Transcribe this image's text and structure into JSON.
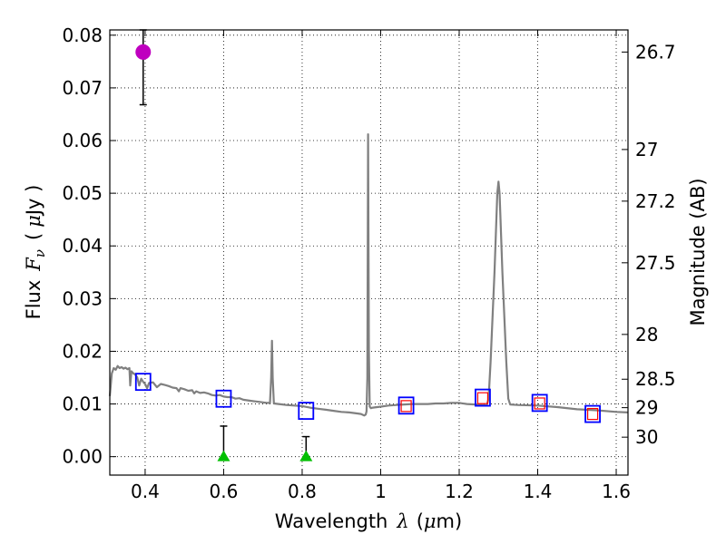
{
  "chart_data": {
    "type": "line",
    "title": "",
    "xlabel": "Wavelength",
    "xlabel_symbol": "λ",
    "xlabel_unit_open": "(",
    "xlabel_unit_mu": "μ",
    "xlabel_unit_rest": "m)",
    "ylabel": "Flux",
    "ylabel_symbol": "F",
    "ylabel_subscript": "ν",
    "ylabel_unit_open": "(",
    "ylabel_unit_mu": "μ",
    "ylabel_unit_rest": "Jy )",
    "y2label": "Magnitude (AB)",
    "xlim": [
      0.31,
      1.63
    ],
    "ylim": [
      -0.0035,
      0.081
    ],
    "xticks": [
      0.4,
      0.6,
      0.8,
      1.0,
      1.2,
      1.4,
      1.6
    ],
    "xtick_labels": [
      "0.4",
      "0.6",
      "0.8",
      "1",
      "1.2",
      "1.4",
      "1.6"
    ],
    "yticks": [
      0.0,
      0.01,
      0.02,
      0.03,
      0.04,
      0.05,
      0.06,
      0.07,
      0.08
    ],
    "ytick_labels": [
      "0.00",
      "0.01",
      "0.02",
      "0.03",
      "0.04",
      "0.05",
      "0.06",
      "0.07",
      "0.08"
    ],
    "y2_ticks": [
      {
        "label": "26.7",
        "flux": 0.0768
      },
      {
        "label": "27",
        "flux": 0.0583
      },
      {
        "label": "27.2",
        "flux": 0.0485
      },
      {
        "label": "27.5",
        "flux": 0.0368
      },
      {
        "label": "28",
        "flux": 0.0232
      },
      {
        "label": "28.5",
        "flux": 0.0147
      },
      {
        "label": "29",
        "flux": 0.0093
      },
      {
        "label": "30",
        "flux": 0.0037
      }
    ],
    "grid": true,
    "colors": {
      "model": "#808080",
      "measured": "#0000ff",
      "model_photometry": "#ff0000",
      "detection": "#bf00bf",
      "upper_limit": "#00bf00",
      "error_bar": "#000000"
    },
    "series": [
      {
        "name": "model spectrum",
        "kind": "line",
        "points": [
          [
            0.31,
            0.0115
          ],
          [
            0.315,
            0.0158
          ],
          [
            0.32,
            0.0168
          ],
          [
            0.325,
            0.0165
          ],
          [
            0.33,
            0.0172
          ],
          [
            0.335,
            0.0168
          ],
          [
            0.34,
            0.017
          ],
          [
            0.345,
            0.0167
          ],
          [
            0.35,
            0.0169
          ],
          [
            0.355,
            0.0166
          ],
          [
            0.36,
            0.0168
          ],
          [
            0.362,
            0.0135
          ],
          [
            0.365,
            0.0162
          ],
          [
            0.37,
            0.0158
          ],
          [
            0.375,
            0.0156
          ],
          [
            0.38,
            0.015
          ],
          [
            0.385,
            0.0135
          ],
          [
            0.39,
            0.0148
          ],
          [
            0.395,
            0.0142
          ],
          [
            0.4,
            0.0138
          ],
          [
            0.405,
            0.013
          ],
          [
            0.41,
            0.014
          ],
          [
            0.42,
            0.0141
          ],
          [
            0.43,
            0.0132
          ],
          [
            0.44,
            0.0138
          ],
          [
            0.45,
            0.0136
          ],
          [
            0.46,
            0.0134
          ],
          [
            0.47,
            0.0131
          ],
          [
            0.48,
            0.013
          ],
          [
            0.486,
            0.0124
          ],
          [
            0.49,
            0.013
          ],
          [
            0.5,
            0.0128
          ],
          [
            0.51,
            0.0125
          ],
          [
            0.52,
            0.0126
          ],
          [
            0.525,
            0.012
          ],
          [
            0.53,
            0.0124
          ],
          [
            0.54,
            0.0121
          ],
          [
            0.55,
            0.0122
          ],
          [
            0.56,
            0.012
          ],
          [
            0.57,
            0.0117
          ],
          [
            0.58,
            0.0116
          ],
          [
            0.59,
            0.0117
          ],
          [
            0.6,
            0.0114
          ],
          [
            0.61,
            0.0113
          ],
          [
            0.62,
            0.0113
          ],
          [
            0.63,
            0.011
          ],
          [
            0.64,
            0.0111
          ],
          [
            0.65,
            0.0108
          ],
          [
            0.66,
            0.0107
          ],
          [
            0.67,
            0.0106
          ],
          [
            0.68,
            0.0105
          ],
          [
            0.69,
            0.0104
          ],
          [
            0.7,
            0.0103
          ],
          [
            0.71,
            0.0102
          ],
          [
            0.718,
            0.0102
          ],
          [
            0.721,
            0.015
          ],
          [
            0.723,
            0.022
          ],
          [
            0.725,
            0.015
          ],
          [
            0.728,
            0.0101
          ],
          [
            0.74,
            0.01
          ],
          [
            0.75,
            0.0099
          ],
          [
            0.76,
            0.0098
          ],
          [
            0.78,
            0.0097
          ],
          [
            0.8,
            0.0096
          ],
          [
            0.82,
            0.0093
          ],
          [
            0.84,
            0.0091
          ],
          [
            0.86,
            0.0089
          ],
          [
            0.88,
            0.0087
          ],
          [
            0.9,
            0.0085
          ],
          [
            0.92,
            0.0084
          ],
          [
            0.94,
            0.0082
          ],
          [
            0.95,
            0.0081
          ],
          [
            0.958,
            0.0078
          ],
          [
            0.962,
            0.008
          ],
          [
            0.964,
            0.0086
          ],
          [
            0.966,
            0.015
          ],
          [
            0.968,
            0.0612
          ],
          [
            0.97,
            0.02
          ],
          [
            0.972,
            0.0095
          ],
          [
            0.975,
            0.0092
          ],
          [
            0.98,
            0.0093
          ],
          [
            1.0,
            0.0095
          ],
          [
            1.02,
            0.0097
          ],
          [
            1.04,
            0.0098
          ],
          [
            1.06,
            0.0099
          ],
          [
            1.08,
            0.01
          ],
          [
            1.1,
            0.01
          ],
          [
            1.12,
            0.01
          ],
          [
            1.14,
            0.0101
          ],
          [
            1.16,
            0.0101
          ],
          [
            1.18,
            0.0102
          ],
          [
            1.2,
            0.0102
          ],
          [
            1.22,
            0.01
          ],
          [
            1.24,
            0.0099
          ],
          [
            1.26,
            0.0098
          ],
          [
            1.27,
            0.0097
          ],
          [
            1.275,
            0.011
          ],
          [
            1.28,
            0.018
          ],
          [
            1.29,
            0.035
          ],
          [
            1.297,
            0.05
          ],
          [
            1.3,
            0.0522
          ],
          [
            1.303,
            0.05
          ],
          [
            1.31,
            0.035
          ],
          [
            1.32,
            0.018
          ],
          [
            1.325,
            0.011
          ],
          [
            1.33,
            0.0099
          ],
          [
            1.35,
            0.0098
          ],
          [
            1.4,
            0.0097
          ],
          [
            1.45,
            0.0094
          ],
          [
            1.5,
            0.009
          ],
          [
            1.55,
            0.0088
          ],
          [
            1.6,
            0.0085
          ],
          [
            1.63,
            0.0084
          ]
        ]
      },
      {
        "name": "measured photometry",
        "kind": "open-square",
        "points": [
          [
            0.395,
            0.0142
          ],
          [
            0.6,
            0.011
          ],
          [
            0.81,
            0.0087
          ],
          [
            1.065,
            0.0097
          ],
          [
            1.26,
            0.0112
          ],
          [
            1.405,
            0.0102
          ],
          [
            1.54,
            0.0081
          ]
        ]
      },
      {
        "name": "model photometry",
        "kind": "open-square",
        "points": [
          [
            1.065,
            0.0096
          ],
          [
            1.26,
            0.0111
          ],
          [
            1.405,
            0.0101
          ],
          [
            1.54,
            0.0081
          ]
        ]
      },
      {
        "name": "detection",
        "kind": "filled-circle",
        "points": [
          [
            0.395,
            0.0768
          ]
        ],
        "error_low": [
          0.0668
        ],
        "error_high": [
          0.081
        ]
      },
      {
        "name": "upper limits",
        "kind": "filled-triangle",
        "points": [
          [
            0.6,
            0.0
          ],
          [
            0.81,
            0.0
          ]
        ],
        "error_low": [
          0.0,
          0.0
        ],
        "error_high": [
          0.0058,
          0.0038
        ]
      }
    ]
  }
}
